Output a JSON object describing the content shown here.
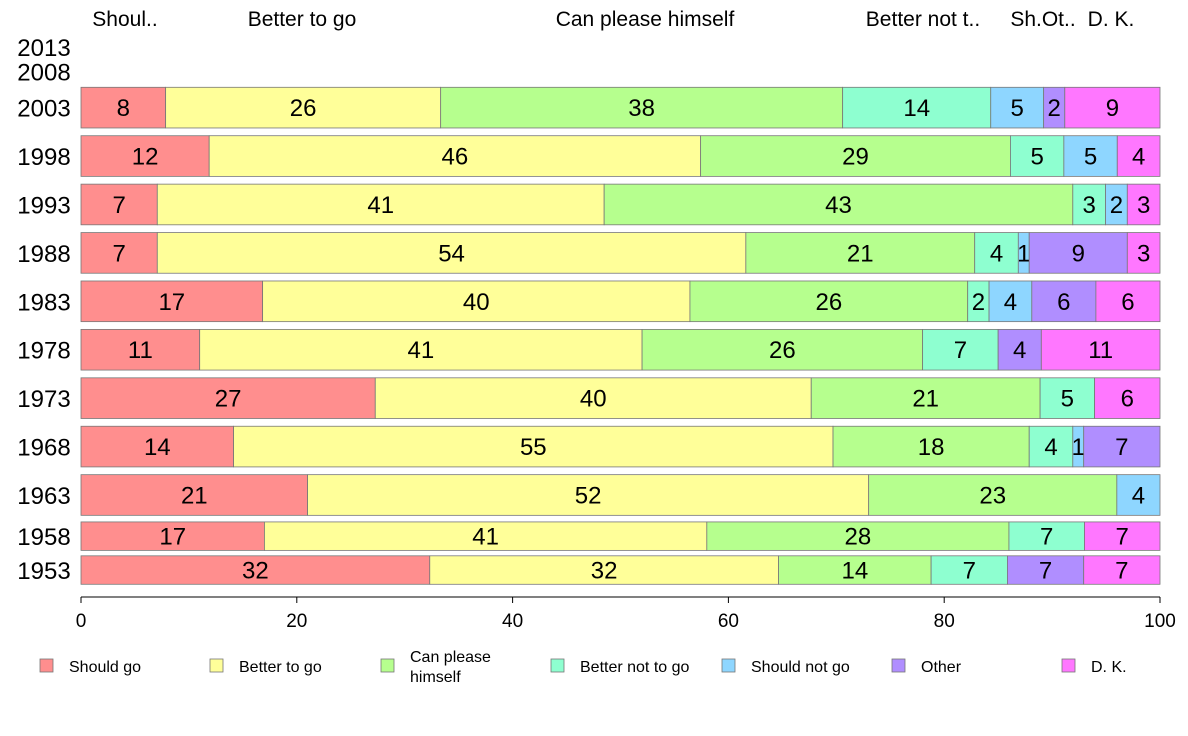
{
  "chart_data": {
    "type": "bar",
    "orientation": "horizontal",
    "stacked": true,
    "xlim": [
      0,
      100
    ],
    "xticks": [
      "0",
      "20",
      "40",
      "60",
      "80",
      "100"
    ],
    "column_headers": [
      "Shoul..",
      "Better to go",
      "Can please himself",
      "Better not t..",
      "Sh.Ot..",
      "D. K."
    ],
    "legend": {
      "placement": "bottom",
      "entries": [
        {
          "lines": [
            "Should go"
          ],
          "color": "#FF8E8E"
        },
        {
          "lines": [
            "Better to go"
          ],
          "color": "#FFFF99"
        },
        {
          "lines": [
            "Can please",
            "himself"
          ],
          "color": "#B6FF8E"
        },
        {
          "lines": [
            "Better not to go"
          ],
          "color": "#8EFFD0"
        },
        {
          "lines": [
            "Should not go"
          ],
          "color": "#8ED6FF"
        },
        {
          "lines": [
            "Other"
          ],
          "color": "#B08EFF"
        },
        {
          "lines": [
            "D. K."
          ],
          "color": "#FF77FF"
        }
      ]
    },
    "series": [
      {
        "name": "Should go",
        "color": "#FF8E8E"
      },
      {
        "name": "Better to go",
        "color": "#FFFF99"
      },
      {
        "name": "Can please himself",
        "color": "#B6FF8E"
      },
      {
        "name": "Better not to go",
        "color": "#8EFFD0"
      },
      {
        "name": "Should not go",
        "color": "#8ED6FF"
      },
      {
        "name": "Other",
        "color": "#B08EFF"
      },
      {
        "name": "D. K.",
        "color": "#FF77FF"
      }
    ],
    "categories": [
      "2013",
      "2008",
      "2003",
      "1998",
      "1993",
      "1988",
      "1983",
      "1978",
      "1973",
      "1968",
      "1963",
      "1958",
      "1953"
    ],
    "values": [
      [
        0,
        0,
        0,
        0,
        0,
        0,
        0
      ],
      [
        0,
        0,
        0,
        0,
        0,
        0,
        0
      ],
      [
        8,
        26,
        38,
        14,
        5,
        2,
        9
      ],
      [
        12,
        46,
        29,
        5,
        5,
        0,
        4
      ],
      [
        7,
        41,
        43,
        3,
        2,
        0,
        3
      ],
      [
        7,
        54,
        21,
        4,
        1,
        9,
        3
      ],
      [
        17,
        40,
        26,
        2,
        4,
        6,
        6
      ],
      [
        11,
        41,
        26,
        7,
        0,
        4,
        11
      ],
      [
        27,
        40,
        21,
        5,
        0,
        0,
        6
      ],
      [
        14,
        55,
        18,
        4,
        1,
        7,
        0
      ],
      [
        21,
        52,
        23,
        0,
        4,
        0,
        0
      ],
      [
        17,
        41,
        28,
        7,
        0,
        0,
        7
      ],
      [
        32,
        32,
        14,
        7,
        0,
        7,
        7
      ]
    ],
    "column_weights": [
      0.5,
      0.5,
      1,
      1,
      1,
      1,
      1,
      1,
      1,
      1,
      1,
      0.7,
      0.7
    ]
  }
}
